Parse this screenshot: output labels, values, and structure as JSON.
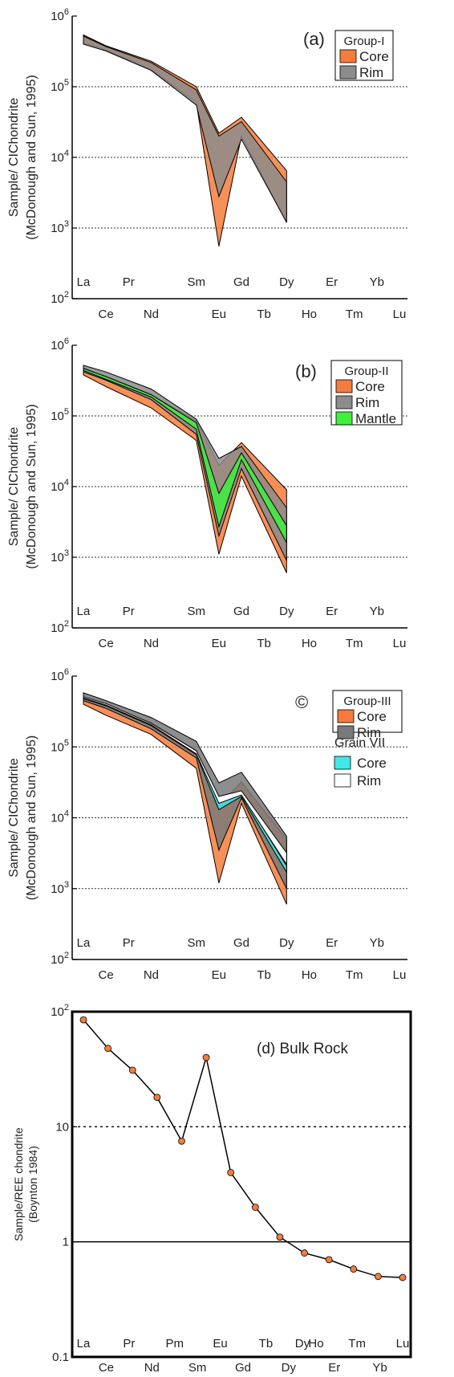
{
  "chart_data": [
    {
      "type": "area",
      "panel_label": "(a)",
      "ylabel": "Sample/ CIChondrite",
      "ylabel2": "(McDonough and Sun, 1995)",
      "legend_title": "Group-I",
      "y_scale": "log",
      "ylim": [
        100,
        1000000
      ],
      "y_ticks": [
        {
          "main": "10",
          "exp": "2"
        },
        {
          "main": "10",
          "exp": "3"
        },
        {
          "main": "10",
          "exp": "4"
        },
        {
          "main": "10",
          "exp": "5"
        },
        {
          "main": "10",
          "exp": "6"
        }
      ],
      "x_labels_upper": [
        "La",
        "Pr",
        "Sm",
        "Gd",
        "Dy",
        "Er",
        "Yb"
      ],
      "x_labels_lower": [
        "Ce",
        "Nd",
        "Eu",
        "Tb",
        "Ho",
        "Tm",
        "Lu"
      ],
      "dotted_gridlines": [
        1000,
        10000,
        100000
      ],
      "series": [
        {
          "name": "Core",
          "color": "#f47c3c",
          "x": [
            "La",
            "Ce",
            "Nd",
            "Sm",
            "Eu",
            "Gd",
            "Dy"
          ],
          "high": [
            540000,
            380000,
            230000,
            100000,
            22000,
            37000,
            6500
          ],
          "low": [
            420000,
            330000,
            175000,
            60000,
            550,
            20000,
            1200
          ]
        },
        {
          "name": "Rim",
          "color": "#8c8c8c",
          "x": [
            "La",
            "Ce",
            "Nd",
            "Sm",
            "Eu",
            "Gd",
            "Dy"
          ],
          "high": [
            520000,
            370000,
            220000,
            90000,
            20000,
            32000,
            4500
          ],
          "low": [
            400000,
            320000,
            170000,
            55000,
            2800,
            18000,
            1200
          ]
        }
      ]
    },
    {
      "type": "area",
      "panel_label": "(b)",
      "ylabel": "Sample/ CIChondrite",
      "ylabel2": "(McDonough and Sun, 1995)",
      "legend_title": "Group-II",
      "y_scale": "log",
      "ylim": [
        100,
        1000000
      ],
      "y_ticks": [
        {
          "main": "10",
          "exp": "2"
        },
        {
          "main": "10",
          "exp": "3"
        },
        {
          "main": "10",
          "exp": "4"
        },
        {
          "main": "10",
          "exp": "5"
        },
        {
          "main": "10",
          "exp": "6"
        }
      ],
      "x_labels_upper": [
        "La",
        "Pr",
        "Sm",
        "Gd",
        "Dy",
        "Er",
        "Yb"
      ],
      "x_labels_lower": [
        "Ce",
        "Nd",
        "Eu",
        "Tb",
        "Ho",
        "Tm",
        "Lu"
      ],
      "dotted_gridlines": [
        1000,
        10000,
        100000
      ],
      "series": [
        {
          "name": "Core",
          "color": "#f47c3c",
          "x": [
            "La",
            "Ce",
            "Nd",
            "Sm",
            "Eu",
            "Gd",
            "Dy"
          ],
          "high": [
            480000,
            360000,
            200000,
            85000,
            20000,
            42000,
            9000
          ],
          "low": [
            380000,
            260000,
            130000,
            45000,
            1100,
            14000,
            600
          ]
        },
        {
          "name": "Rim",
          "color": "#8c8c8c",
          "x": [
            "La",
            "Ce",
            "Nd",
            "Sm",
            "Eu",
            "Gd",
            "Dy"
          ],
          "high": [
            520000,
            420000,
            240000,
            90000,
            25000,
            37000,
            5000
          ],
          "low": [
            420000,
            320000,
            170000,
            55000,
            2000,
            18000,
            900
          ]
        },
        {
          "name": "Mantle",
          "color": "#3ef03e",
          "x": [
            "La",
            "Ce",
            "Nd",
            "Sm",
            "Eu",
            "Gd",
            "Dy"
          ],
          "high": [
            470000,
            360000,
            200000,
            80000,
            8000,
            30000,
            2800
          ],
          "low": [
            440000,
            330000,
            185000,
            65000,
            2700,
            24000,
            1600
          ]
        }
      ]
    },
    {
      "type": "area",
      "panel_label": "©",
      "ylabel": "Sample/ CIChondrite",
      "ylabel2": "(McDonough and Sun, 1995)",
      "legend_title": "Group-III",
      "legend_title2": "Grain VII",
      "y_scale": "log",
      "ylim": [
        100,
        1000000
      ],
      "y_ticks": [
        {
          "main": "10",
          "exp": "2"
        },
        {
          "main": "10",
          "exp": "3"
        },
        {
          "main": "10",
          "exp": "4"
        },
        {
          "main": "10",
          "exp": "5"
        },
        {
          "main": "10",
          "exp": "6"
        }
      ],
      "x_labels_upper": [
        "La",
        "Pr",
        "Sm",
        "Gd",
        "Dy",
        "Er",
        "Yb"
      ],
      "x_labels_lower": [
        "Ce",
        "Nd",
        "Eu",
        "Tb",
        "Ho",
        "Tm",
        "Lu"
      ],
      "dotted_gridlines": [
        1000,
        10000,
        100000
      ],
      "series": [
        {
          "name": "Core",
          "group": "Group-III",
          "color": "#f47c3c",
          "x": [
            "La",
            "Ce",
            "Nd",
            "Sm",
            "Eu",
            "Gd",
            "Dy"
          ],
          "high": [
            500000,
            380000,
            220000,
            90000,
            15000,
            32000,
            5000
          ],
          "low": [
            400000,
            280000,
            150000,
            50000,
            1200,
            16000,
            600
          ]
        },
        {
          "name": "Rim",
          "group": "Group-III",
          "color": "#7a7a7a",
          "x": [
            "La",
            "Ce",
            "Nd",
            "Sm",
            "Eu",
            "Gd",
            "Dy"
          ],
          "high": [
            580000,
            450000,
            260000,
            120000,
            31000,
            44000,
            5500
          ],
          "low": [
            450000,
            350000,
            180000,
            70000,
            3500,
            19000,
            1000
          ]
        },
        {
          "name": "Core",
          "group": "Grain VII",
          "color": "#40e8e8",
          "x": [
            "La",
            "Ce",
            "Nd",
            "Sm",
            "Eu",
            "Gd",
            "Dy"
          ],
          "high": [
            500000,
            400000,
            210000,
            85000,
            18000,
            22000,
            2100
          ],
          "low": [
            480000,
            380000,
            200000,
            78000,
            13000,
            20000,
            1700
          ]
        },
        {
          "name": "Rim",
          "group": "Grain VII",
          "color": "#ffffff",
          "x": [
            "La",
            "Ce",
            "Nd",
            "Sm",
            "Eu",
            "Gd",
            "Dy"
          ],
          "high": [
            510000,
            410000,
            215000,
            88000,
            20000,
            24000,
            3200
          ],
          "low": [
            490000,
            390000,
            205000,
            80000,
            16000,
            21000,
            2200
          ]
        }
      ]
    },
    {
      "type": "line",
      "panel_label": "(d) Bulk Rock",
      "ylabel": "Sample/REE chondrite",
      "ylabel2": "(Boynton 1984)",
      "y_scale": "log",
      "ylim": [
        0.1,
        100
      ],
      "y_ticks": [
        {
          "main": "0.1",
          "exp": ""
        },
        {
          "main": "1",
          "exp": ""
        },
        {
          "main": "10",
          "exp": ""
        },
        {
          "main": "10",
          "exp": "2"
        }
      ],
      "x_labels_upper": [
        "La",
        "Pr",
        "Pm",
        "Eu",
        "Tb",
        "Dy",
        "Ho",
        "Tm",
        "Lu"
      ],
      "x_labels_lower": [
        "Ce",
        "Nd",
        "Sm",
        "Gd",
        "Dy",
        "Er",
        "Yb"
      ],
      "gridlines": [
        {
          "value": 10,
          "style": "dotted"
        },
        {
          "value": 1,
          "style": "solid"
        }
      ],
      "series": [
        {
          "name": "",
          "color": "#f47c3c",
          "x": [
            "La",
            "Ce",
            "Pr",
            "Nd",
            "Sm",
            "Eu",
            "Gd",
            "Tb",
            "Dy",
            "Ho",
            "Er",
            "Tm",
            "Yb",
            "Lu"
          ],
          "values": [
            85,
            48,
            31,
            18,
            7.5,
            40,
            4.0,
            2.0,
            1.1,
            0.8,
            0.7,
            0.58,
            0.5,
            0.49
          ]
        }
      ]
    }
  ]
}
